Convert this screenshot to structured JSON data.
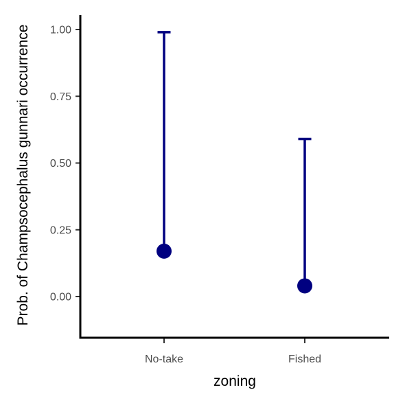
{
  "chart_data": {
    "type": "scatter",
    "xlabel": "zoning",
    "ylabel": "Prob. of  Champsocephalus gunnari  occurrence",
    "categories": [
      "No-take",
      "Fished"
    ],
    "points": [
      {
        "category": "No-take",
        "estimate": 0.17,
        "lower": 0.17,
        "upper": 0.99
      },
      {
        "category": "Fished",
        "estimate": 0.04,
        "lower": 0.04,
        "upper": 0.59
      }
    ],
    "ylim": [
      -0.15,
      1.05
    ],
    "yticks": [
      0.0,
      0.25,
      0.5,
      0.75,
      1.0
    ],
    "ytick_labels": [
      "0.00",
      "0.25",
      "0.50",
      "0.75",
      "1.00"
    ],
    "grid": false,
    "legend": "none",
    "colors": {
      "point": "#000080",
      "axis": "#000000"
    }
  }
}
